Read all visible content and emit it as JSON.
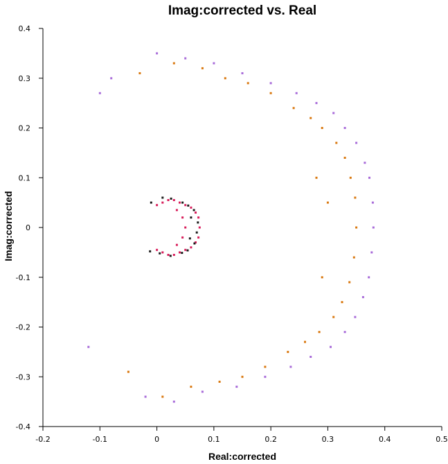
{
  "chart_data": {
    "type": "scatter",
    "title": "Imag:corrected vs. Real",
    "xlabel": "Real:corrected",
    "ylabel": "Imag:corrected",
    "xlim": [
      -0.2,
      0.5
    ],
    "ylim": [
      -0.4,
      0.4
    ],
    "x_ticks": [
      "-0.2",
      "-0.1",
      "0",
      "0.1",
      "0.2",
      "0.3",
      "0.4",
      "0.5"
    ],
    "y_ticks": [
      "0.4",
      "0.3",
      "0.2",
      "0.1",
      "0",
      "-0.1",
      "-0.2",
      "-0.3",
      "-0.4"
    ],
    "grid": false,
    "series": [
      {
        "color": "#a86bd9",
        "points": [
          [
            0.38,
            0.0
          ],
          [
            0.379,
            0.05
          ],
          [
            0.377,
            -0.05
          ],
          [
            0.373,
            0.1
          ],
          [
            0.372,
            -0.1
          ],
          [
            0.365,
            0.13
          ],
          [
            0.362,
            -0.14
          ],
          [
            0.35,
            0.17
          ],
          [
            0.348,
            -0.18
          ],
          [
            0.33,
            0.2
          ],
          [
            0.33,
            -0.21
          ],
          [
            0.31,
            0.23
          ],
          [
            0.305,
            -0.24
          ],
          [
            0.28,
            0.25
          ],
          [
            0.27,
            -0.26
          ],
          [
            0.245,
            0.27
          ],
          [
            0.235,
            -0.28
          ],
          [
            0.2,
            0.29
          ],
          [
            0.19,
            -0.3
          ],
          [
            0.15,
            0.31
          ],
          [
            0.14,
            -0.32
          ],
          [
            0.1,
            0.33
          ],
          [
            0.08,
            -0.33
          ],
          [
            0.05,
            0.34
          ],
          [
            0.03,
            -0.35
          ],
          [
            0.0,
            0.35
          ],
          [
            -0.02,
            -0.34
          ],
          [
            -0.1,
            0.27
          ],
          [
            -0.12,
            -0.24
          ],
          [
            -0.08,
            0.3
          ]
        ]
      },
      {
        "color": "#d9780f",
        "points": [
          [
            0.35,
            0.0
          ],
          [
            0.348,
            0.06
          ],
          [
            0.346,
            -0.06
          ],
          [
            0.34,
            0.1
          ],
          [
            0.338,
            -0.11
          ],
          [
            0.33,
            0.14
          ],
          [
            0.325,
            -0.15
          ],
          [
            0.315,
            0.17
          ],
          [
            0.31,
            -0.18
          ],
          [
            0.29,
            0.2
          ],
          [
            0.285,
            -0.21
          ],
          [
            0.27,
            0.22
          ],
          [
            0.26,
            -0.23
          ],
          [
            0.24,
            0.24
          ],
          [
            0.23,
            -0.25
          ],
          [
            0.2,
            0.27
          ],
          [
            0.19,
            -0.28
          ],
          [
            0.16,
            0.29
          ],
          [
            0.15,
            -0.3
          ],
          [
            0.12,
            0.3
          ],
          [
            0.11,
            -0.31
          ],
          [
            0.08,
            0.32
          ],
          [
            0.06,
            -0.32
          ],
          [
            0.03,
            0.33
          ],
          [
            0.01,
            -0.34
          ],
          [
            -0.03,
            0.31
          ],
          [
            -0.05,
            -0.29
          ],
          [
            0.28,
            0.1
          ],
          [
            0.29,
            -0.1
          ],
          [
            0.3,
            0.05
          ]
        ]
      },
      {
        "color": "#d81e5b",
        "points": [
          [
            0.075,
            0.0
          ],
          [
            0.073,
            0.02
          ],
          [
            0.073,
            -0.02
          ],
          [
            0.068,
            0.03
          ],
          [
            0.068,
            -0.03
          ],
          [
            0.06,
            0.04
          ],
          [
            0.06,
            -0.04
          ],
          [
            0.05,
            0.045
          ],
          [
            0.05,
            -0.045
          ],
          [
            0.04,
            0.05
          ],
          [
            0.04,
            -0.05
          ],
          [
            0.03,
            0.055
          ],
          [
            0.03,
            -0.055
          ],
          [
            0.02,
            0.055
          ],
          [
            0.02,
            -0.055
          ],
          [
            0.01,
            0.05
          ],
          [
            0.01,
            -0.05
          ],
          [
            0.0,
            0.045
          ],
          [
            0.0,
            -0.045
          ],
          [
            0.05,
            0.0
          ],
          [
            0.045,
            0.02
          ],
          [
            0.045,
            -0.02
          ],
          [
            0.035,
            0.035
          ],
          [
            0.035,
            -0.035
          ]
        ]
      },
      {
        "color": "#1a1a1a",
        "points": [
          [
            0.072,
            0.01
          ],
          [
            0.07,
            -0.01
          ],
          [
            0.065,
            0.035
          ],
          [
            0.066,
            -0.032
          ],
          [
            0.055,
            0.044
          ],
          [
            0.054,
            -0.046
          ],
          [
            0.045,
            0.05
          ],
          [
            0.044,
            -0.051
          ],
          [
            0.025,
            0.058
          ],
          [
            0.024,
            -0.057
          ],
          [
            0.01,
            0.06
          ],
          [
            0.005,
            -0.052
          ],
          [
            -0.01,
            0.05
          ],
          [
            -0.012,
            -0.048
          ],
          [
            0.06,
            0.02
          ],
          [
            0.058,
            -0.022
          ]
        ]
      }
    ]
  }
}
